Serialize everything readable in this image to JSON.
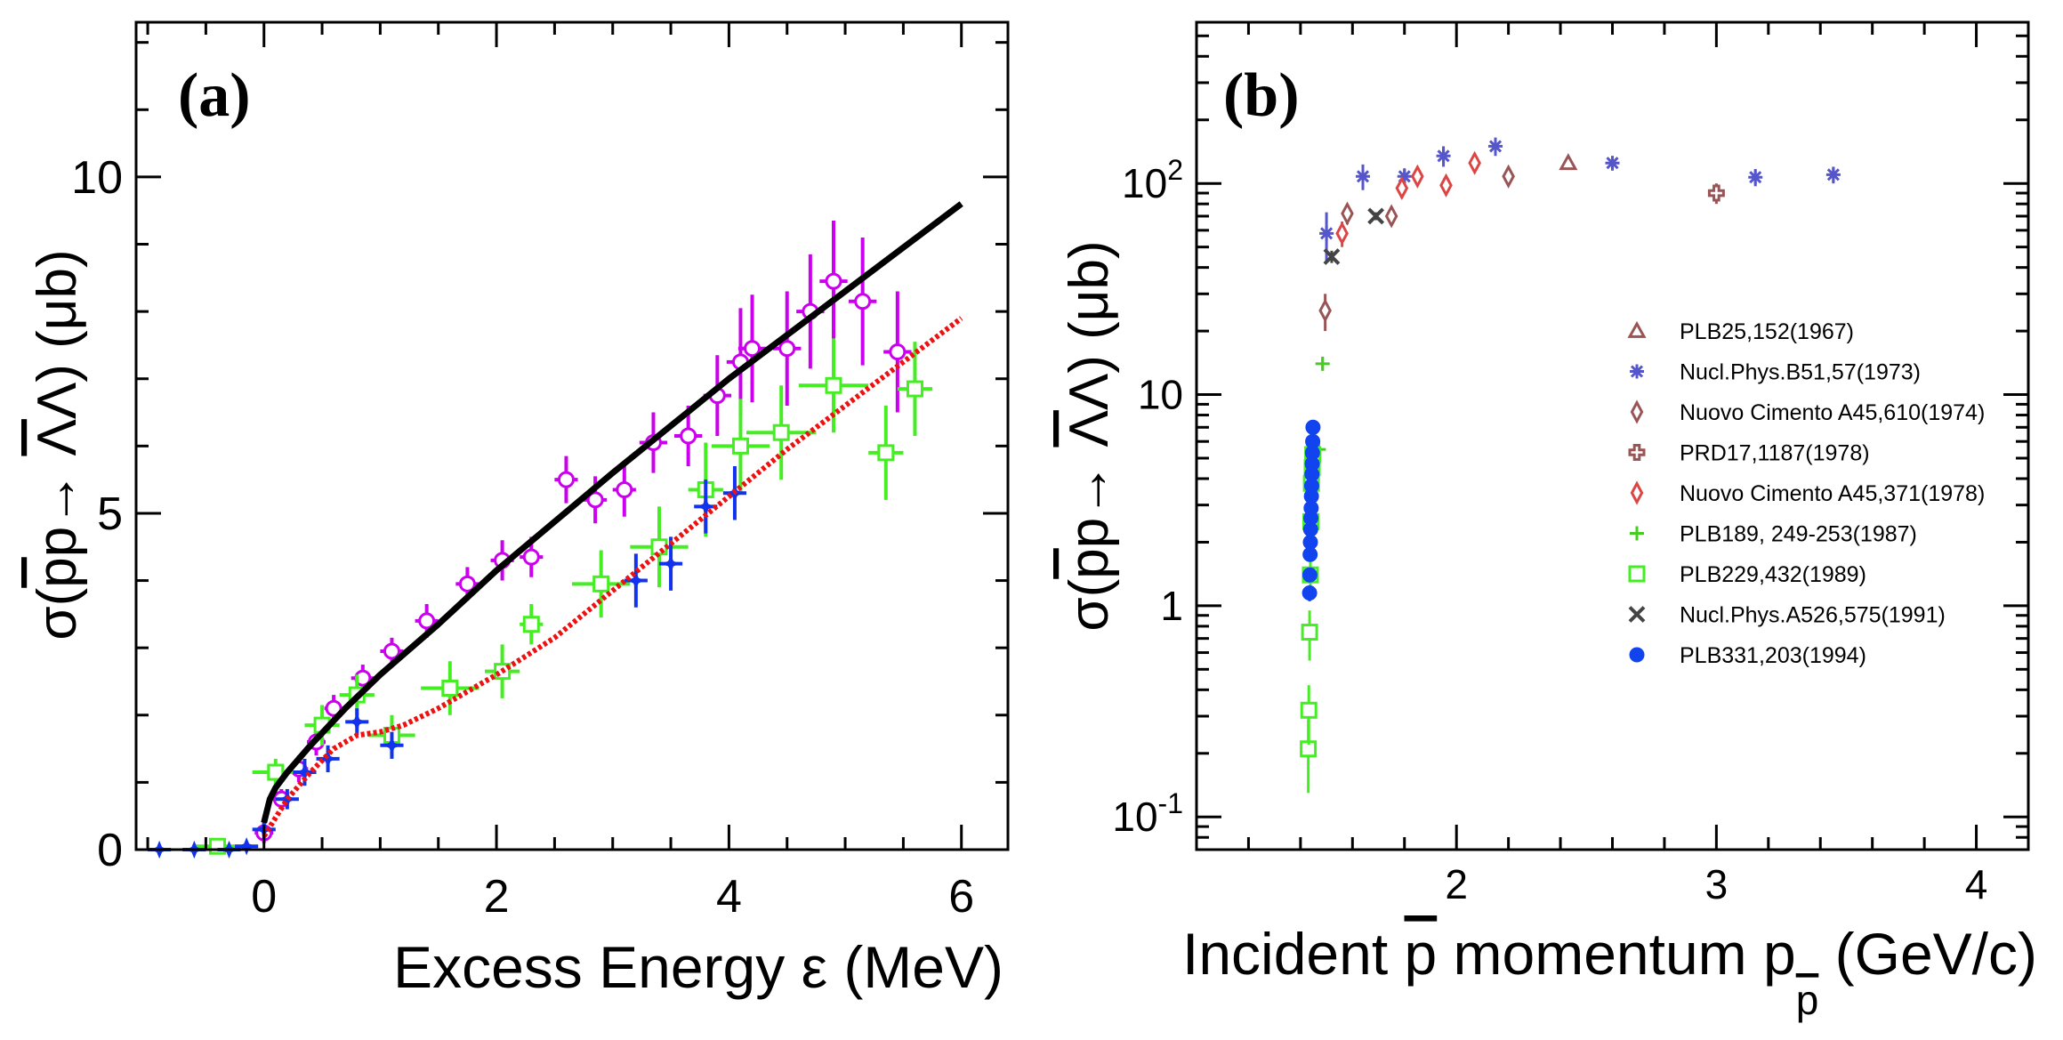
{
  "chart_data": [
    {
      "type": "scatter",
      "panel_label": "(a)",
      "xlabel": "Excess Energy ε (MeV)",
      "ylabel": "σ(p̄p→ Λ̄Λ) (μb)",
      "ylabel_parts": {
        "pre": "σ(",
        "p1": "p",
        "mid": "p→ ",
        "bar2": "Λ",
        "post": "Λ) (μb)"
      },
      "xlim": [
        -1.1,
        6.4
      ],
      "ylim": [
        0,
        12.3
      ],
      "xticks": [
        0,
        2,
        4,
        6
      ],
      "yticks": [
        0,
        5,
        10
      ],
      "xtick_labels": [
        "0",
        "2",
        "4",
        "6"
      ],
      "ytick_labels": [
        "0",
        "5",
        "10"
      ],
      "series": [
        {
          "name": "magenta-open-circles",
          "color": "#cc00ee",
          "marker": "circle-open",
          "x": [
            0.0,
            0.15,
            0.3,
            0.45,
            0.6,
            0.85,
            1.1,
            1.4,
            1.75,
            2.05,
            2.3,
            2.6,
            2.85,
            3.1,
            3.35,
            3.65,
            3.9,
            4.1,
            4.2,
            4.5,
            4.7,
            4.9,
            5.15,
            5.45
          ],
          "y": [
            0.25,
            0.75,
            1.2,
            1.6,
            2.1,
            2.55,
            2.95,
            3.4,
            3.95,
            4.3,
            4.35,
            5.5,
            5.2,
            5.35,
            6.05,
            6.15,
            6.75,
            7.25,
            7.45,
            7.45,
            8.0,
            8.45,
            8.15,
            7.4
          ],
          "xerr": [
            0.08,
            0.08,
            0.08,
            0.08,
            0.08,
            0.1,
            0.1,
            0.1,
            0.1,
            0.1,
            0.1,
            0.1,
            0.1,
            0.1,
            0.12,
            0.12,
            0.12,
            0.12,
            0.12,
            0.12,
            0.12,
            0.12,
            0.12,
            0.12
          ],
          "yerr": [
            0.15,
            0.15,
            0.2,
            0.2,
            0.2,
            0.2,
            0.2,
            0.25,
            0.25,
            0.3,
            0.3,
            0.35,
            0.35,
            0.4,
            0.45,
            0.45,
            0.6,
            0.8,
            0.8,
            0.85,
            0.85,
            0.9,
            0.95,
            0.9
          ]
        },
        {
          "name": "green-open-squares",
          "color": "#44ee22",
          "marker": "square-open",
          "x": [
            -0.4,
            0.1,
            0.5,
            0.8,
            1.1,
            1.6,
            2.05,
            2.3,
            2.9,
            3.4,
            3.8,
            4.1,
            4.45,
            4.9,
            5.35,
            5.6
          ],
          "y": [
            0.05,
            1.15,
            1.85,
            2.3,
            1.7,
            2.4,
            2.65,
            3.35,
            3.95,
            4.5,
            5.35,
            6.0,
            6.2,
            6.9,
            5.9,
            6.85
          ],
          "xerr": [
            0.2,
            0.2,
            0.15,
            0.15,
            0.2,
            0.25,
            0.15,
            0.1,
            0.25,
            0.25,
            0.15,
            0.25,
            0.3,
            0.3,
            0.15,
            0.15
          ],
          "yerr": [
            0.1,
            0.2,
            0.3,
            0.3,
            0.3,
            0.4,
            0.4,
            0.3,
            0.5,
            0.6,
            0.7,
            0.7,
            0.7,
            0.7,
            0.7,
            0.7
          ]
        },
        {
          "name": "blue-filled-stars",
          "color": "#1133ee",
          "marker": "star-filled",
          "x": [
            -0.9,
            -0.6,
            -0.3,
            -0.15,
            0.0,
            0.2,
            0.35,
            0.55,
            0.8,
            1.1,
            3.2,
            3.5,
            3.8,
            4.05
          ],
          "y": [
            0.0,
            0.0,
            0.0,
            0.05,
            0.3,
            0.75,
            1.15,
            1.35,
            1.9,
            1.55,
            4.0,
            4.25,
            5.1,
            5.3
          ],
          "xerr": [
            0.1,
            0.1,
            0.1,
            0.1,
            0.1,
            0.1,
            0.1,
            0.1,
            0.1,
            0.1,
            0.1,
            0.1,
            0.1,
            0.1
          ],
          "yerr": [
            0.05,
            0.05,
            0.05,
            0.05,
            0.15,
            0.15,
            0.2,
            0.2,
            0.2,
            0.2,
            0.4,
            0.4,
            0.4,
            0.4
          ]
        }
      ],
      "curves": [
        {
          "name": "black-solid-curve",
          "color": "#000000",
          "style": "solid",
          "x": [
            0.0,
            0.05,
            0.1,
            0.2,
            0.4,
            0.7,
            1.0,
            1.5,
            2.0,
            3.0,
            4.0,
            5.0,
            6.0
          ],
          "y": [
            0.4,
            0.75,
            0.92,
            1.15,
            1.55,
            2.1,
            2.6,
            3.35,
            4.15,
            5.6,
            7.0,
            8.3,
            9.6
          ]
        },
        {
          "name": "red-dotted-curve",
          "color": "#ee1111",
          "style": "dotted",
          "x": [
            0.0,
            0.2,
            0.4,
            0.6,
            0.8,
            1.0,
            1.2,
            1.5,
            2.0,
            2.5,
            3.0,
            3.5,
            4.0,
            4.5,
            5.0,
            5.5,
            6.0
          ],
          "y": [
            0.2,
            0.75,
            1.15,
            1.5,
            1.7,
            1.75,
            1.85,
            2.1,
            2.6,
            3.15,
            3.85,
            4.55,
            5.25,
            5.95,
            6.6,
            7.25,
            7.9
          ]
        }
      ]
    },
    {
      "type": "scatter",
      "panel_label": "(b)",
      "xlabel": "Incident p̄ momentum p",
      "xlabel_parts": {
        "pre": "Incident ",
        "pbar": "p",
        "mid": " momentum p",
        "sub": "p",
        "post": " (GeV/c)"
      },
      "ylabel": "σ(p̄p→ Λ̄Λ) (μb)",
      "ylabel_parts": {
        "pre": "σ(",
        "p1": "p",
        "mid": "p→ ",
        "bar2": "Λ",
        "post": "Λ) (μb)"
      },
      "yscale": "log",
      "xlim": [
        1.0,
        4.2
      ],
      "ylim": [
        0.07,
        580
      ],
      "xticks": [
        2,
        3,
        4
      ],
      "xtick_labels": [
        "2",
        "3",
        "4"
      ],
      "ytick_labels": [
        {
          "base": "10",
          "exp": "-1",
          "value": 0.1
        },
        {
          "base": "1",
          "exp": "",
          "value": 1
        },
        {
          "base": "10",
          "exp": "",
          "value": 10
        },
        {
          "base": "10",
          "exp": "2",
          "value": 100
        }
      ],
      "series": [
        {
          "name": "PLB25,152(1967)",
          "color": "#995555",
          "marker": "triangle-open",
          "x": [
            2.43
          ],
          "y": [
            125
          ],
          "yerr_lo": [
            0
          ],
          "yerr_hi": [
            0
          ]
        },
        {
          "name": "Nucl.Phys.B51,57(1973)",
          "color": "#5555cc",
          "marker": "asterisk",
          "x": [
            1.5,
            1.64,
            1.8,
            1.95,
            2.15,
            2.6,
            3.15,
            3.45
          ],
          "y": [
            58,
            108,
            108,
            135,
            150,
            125,
            107,
            110
          ],
          "yerr_lo": [
            15,
            15,
            10,
            15,
            15,
            10,
            10,
            10
          ],
          "yerr_hi": [
            15,
            15,
            10,
            15,
            15,
            10,
            10,
            10
          ]
        },
        {
          "name": "Nuovo Cimento A45,610(1974)",
          "color": "#995555",
          "marker": "diamond-open",
          "x": [
            1.495,
            1.58,
            1.75,
            2.2
          ],
          "y": [
            25,
            72,
            70,
            108
          ],
          "yerr_lo": [
            5,
            8,
            5,
            8
          ],
          "yerr_hi": [
            5,
            8,
            5,
            8
          ]
        },
        {
          "name": "PRD17,1187(1978)",
          "color": "#995555",
          "marker": "cross-open",
          "x": [
            3.0
          ],
          "y": [
            90
          ],
          "yerr_lo": [
            10
          ],
          "yerr_hi": [
            10
          ]
        },
        {
          "name": "Nuovo Cimento A45,371(1978)",
          "color": "#dd4444",
          "marker": "diamond-open",
          "x": [
            1.56,
            1.79,
            1.85,
            1.96,
            2.07
          ],
          "y": [
            58,
            95,
            108,
            98,
            125
          ],
          "yerr_lo": [
            8,
            10,
            10,
            10,
            10
          ],
          "yerr_hi": [
            8,
            10,
            10,
            10,
            10
          ]
        },
        {
          "name": "PLB189, 249-253(1987)",
          "color": "#44cc22",
          "marker": "plus",
          "x": [
            1.47,
            1.485
          ],
          "y": [
            5.5,
            14
          ],
          "yerr_lo": [
            0.5,
            1
          ],
          "yerr_hi": [
            0.5,
            1
          ]
        },
        {
          "name": "PLB229,432(1989)",
          "color": "#44ee22",
          "marker": "square-open",
          "x": [
            1.43,
            1.432,
            1.435,
            1.438,
            1.44,
            1.442,
            1.445,
            1.447
          ],
          "y": [
            0.21,
            0.32,
            0.75,
            1.4,
            2.5,
            3.8,
            4.5,
            5.2
          ],
          "yerr_lo": [
            0.08,
            0.1,
            0.2,
            0.3,
            0.4,
            0.5,
            0.5,
            0.5
          ],
          "yerr_hi": [
            0.08,
            0.1,
            0.2,
            0.3,
            0.4,
            0.5,
            0.5,
            0.5
          ]
        },
        {
          "name": "Nucl.Phys.A526,575(1991)",
          "color": "#444444",
          "marker": "x-cross",
          "x": [
            1.52,
            1.69
          ],
          "y": [
            45,
            70
          ],
          "yerr_lo": [
            3,
            3
          ],
          "yerr_hi": [
            3,
            3
          ]
        },
        {
          "name": "PLB331,203(1994)",
          "color": "#1144ee",
          "marker": "circle-filled",
          "x": [
            1.435,
            1.436,
            1.437,
            1.438,
            1.439,
            1.44,
            1.441,
            1.442,
            1.443,
            1.444,
            1.445,
            1.446,
            1.447,
            1.448
          ],
          "y": [
            1.15,
            1.4,
            1.75,
            2.0,
            2.3,
            2.6,
            2.9,
            3.3,
            3.7,
            4.2,
            4.7,
            5.3,
            6.0,
            7.0
          ],
          "yerr_lo": [
            0.1,
            0.1,
            0.1,
            0.1,
            0.1,
            0.1,
            0.1,
            0.1,
            0.1,
            0.1,
            0.1,
            0.1,
            0.1,
            0.1
          ],
          "yerr_hi": [
            0.1,
            0.1,
            0.1,
            0.1,
            0.1,
            0.1,
            0.1,
            0.1,
            0.1,
            0.1,
            0.1,
            0.1,
            0.1,
            0.1
          ]
        }
      ],
      "legend": {
        "placement": "right"
      }
    }
  ]
}
